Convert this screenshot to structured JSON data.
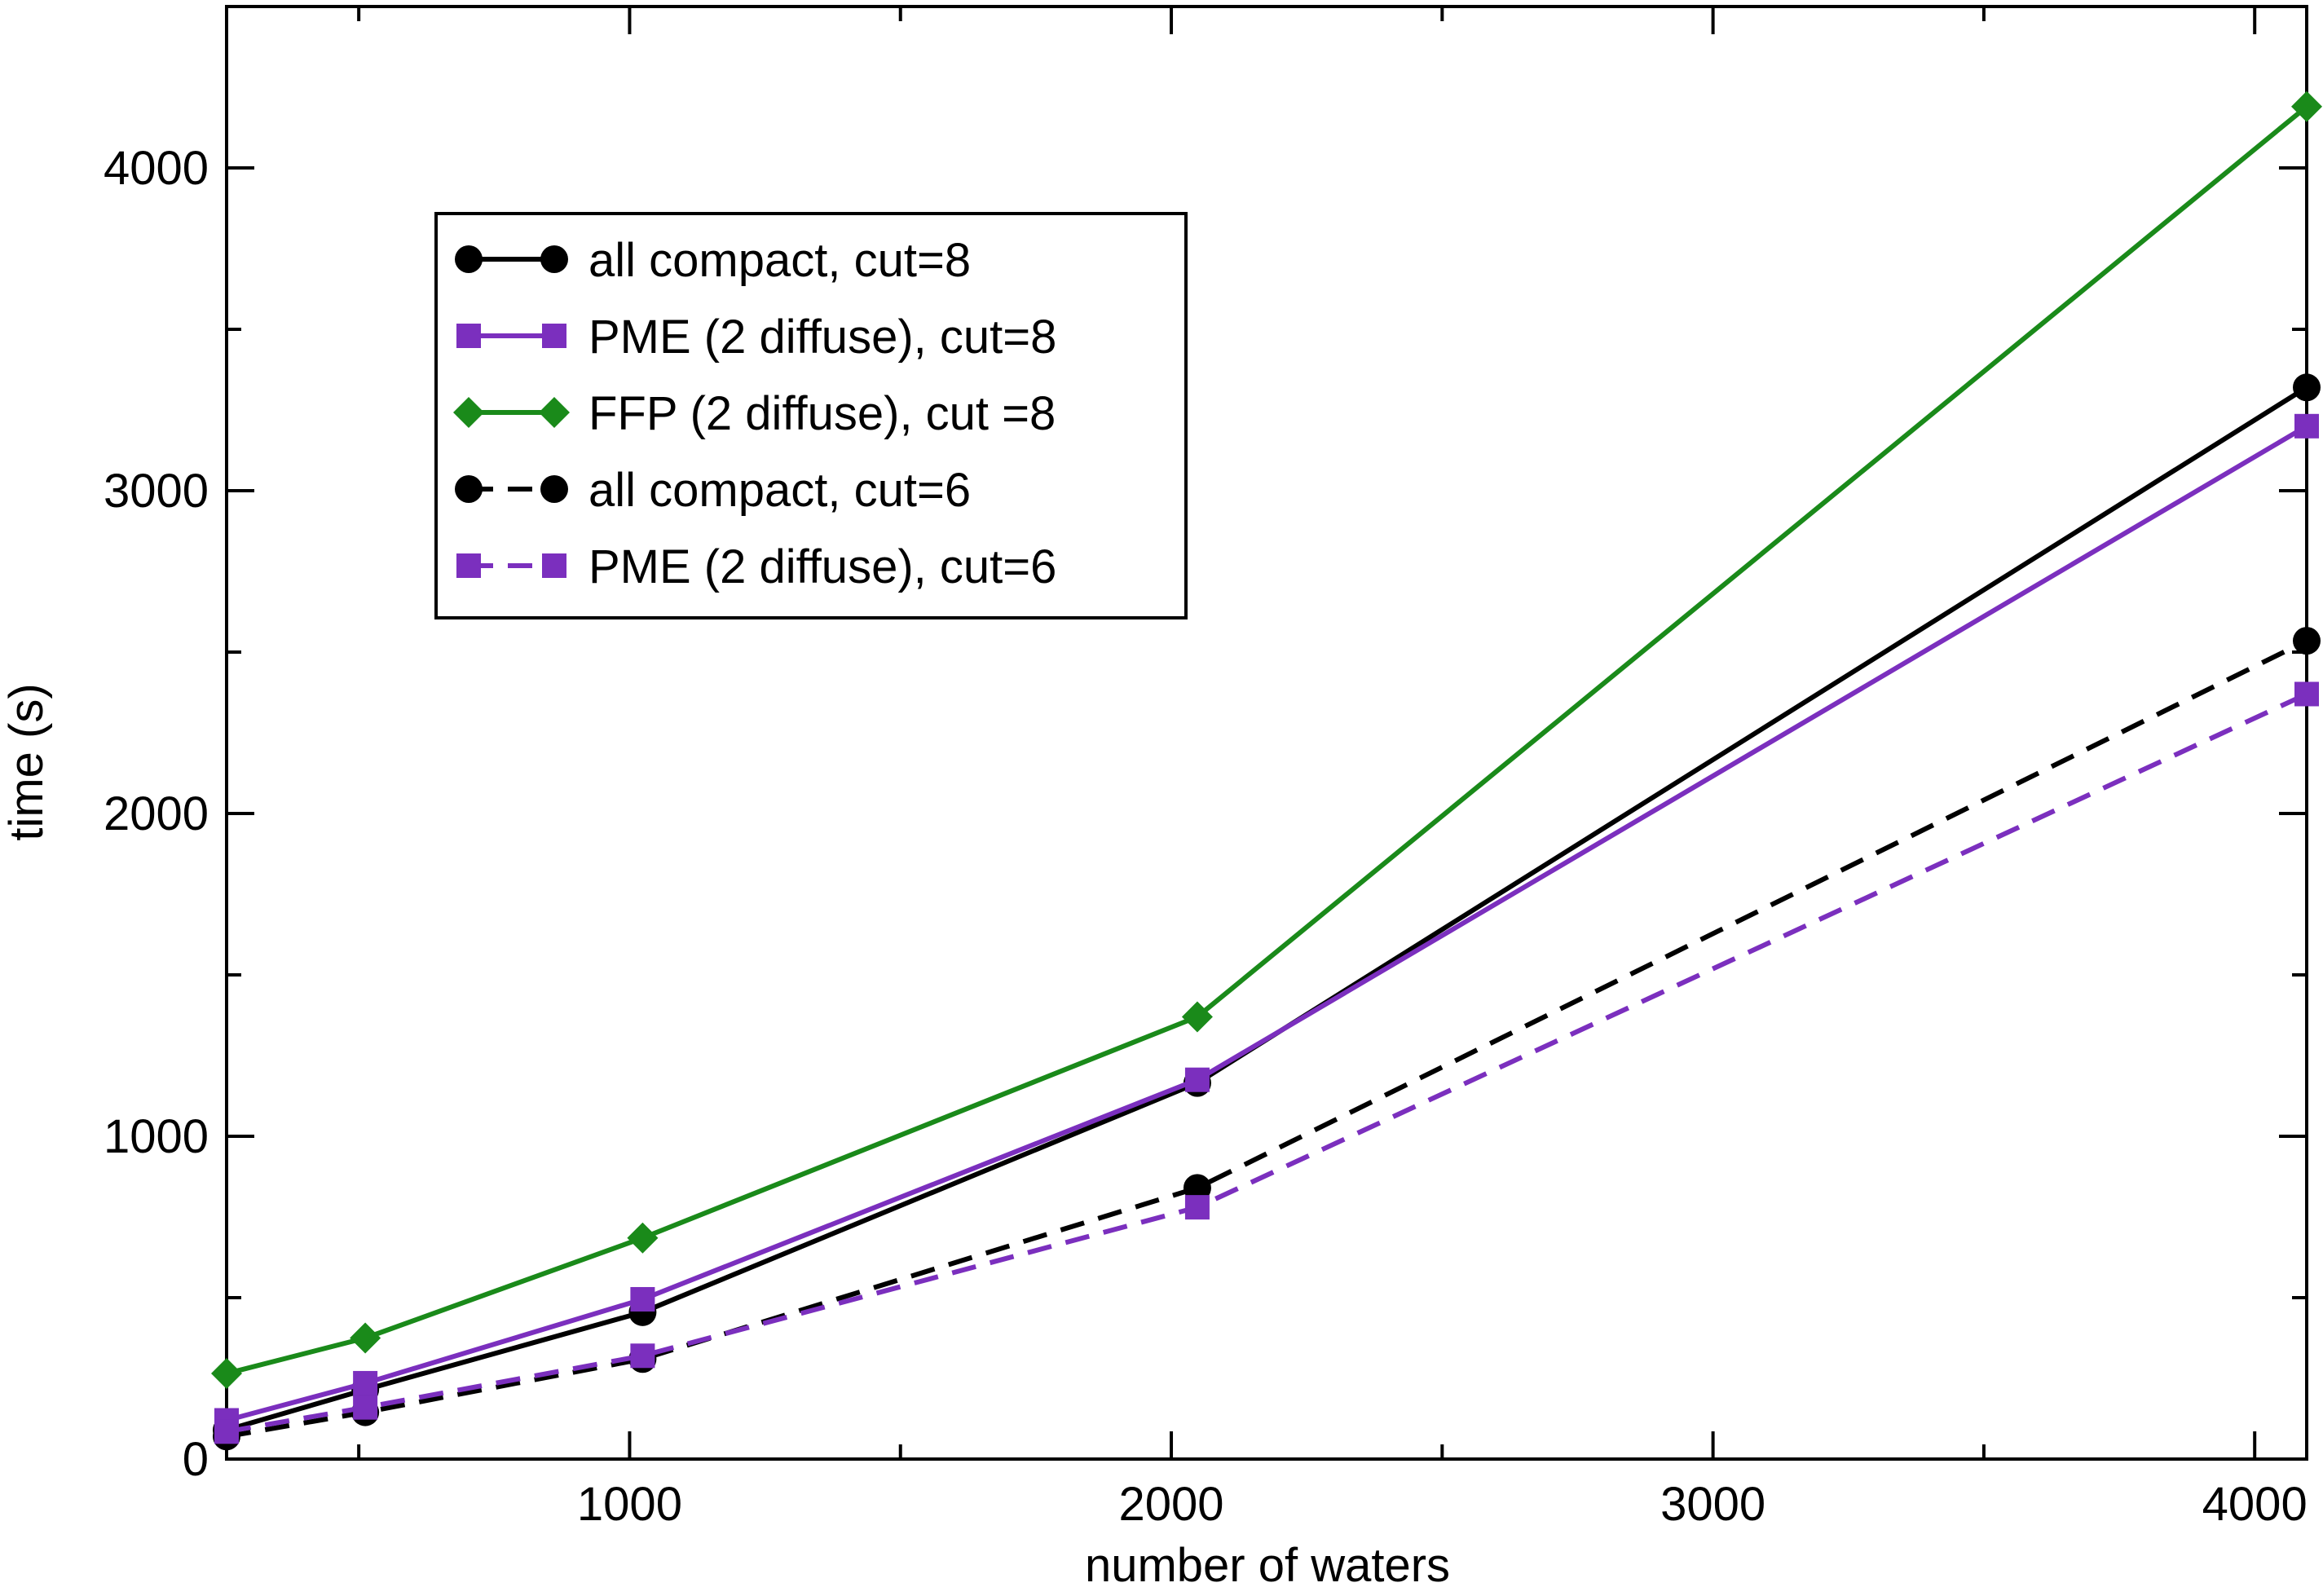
{
  "chart_data": {
    "type": "line",
    "xlabel": "number of waters",
    "ylabel": "time (s)",
    "xlim": [
      256,
      4096
    ],
    "ylim": [
      0,
      4500
    ],
    "xticks": [
      1000,
      2000,
      3000,
      4000
    ],
    "yticks": [
      0,
      1000,
      2000,
      3000,
      4000
    ],
    "legend_position": "top-left",
    "grid": false,
    "x": [
      256,
      512,
      1024,
      2048,
      4096
    ],
    "series": [
      {
        "name": "all compact, cut=8",
        "color": "#000000",
        "dash": "solid",
        "marker": "circle",
        "values": [
          90,
          215,
          455,
          1165,
          3320
        ]
      },
      {
        "name": "PME (2 diffuse), cut=8",
        "color": "#7b2fbe",
        "dash": "solid",
        "marker": "square",
        "values": [
          120,
          235,
          495,
          1175,
          3200
        ]
      },
      {
        "name": "FFP (2 diffuse), cut =8",
        "color": "#1a8a1a",
        "dash": "solid",
        "marker": "diamond",
        "values": [
          265,
          375,
          685,
          1370,
          4190
        ]
      },
      {
        "name": "all compact, cut=6",
        "color": "#000000",
        "dash": "dashed",
        "marker": "circle",
        "values": [
          70,
          145,
          310,
          840,
          2535
        ]
      },
      {
        "name": "PME (2 diffuse), cut=6",
        "color": "#7b2fbe",
        "dash": "dashed",
        "marker": "square",
        "values": [
          85,
          160,
          320,
          780,
          2370
        ]
      }
    ]
  }
}
